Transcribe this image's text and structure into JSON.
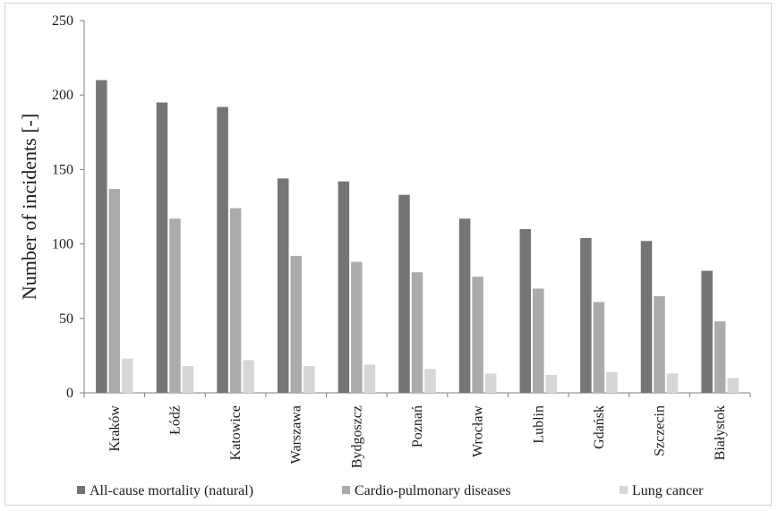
{
  "chart_data": {
    "type": "bar",
    "title": "",
    "xlabel": "",
    "ylabel": "Number of incidents [-]",
    "ylim": [
      0,
      250
    ],
    "yticks": [
      0,
      50,
      100,
      150,
      200,
      250
    ],
    "grid": false,
    "legend_position": "bottom",
    "categories": [
      "Kraków",
      "Łódź",
      "Katowice",
      "Warszawa",
      "Bydgoszcz",
      "Poznań",
      "Wrocław",
      "Lublin",
      "Gdańsk",
      "Szczecin",
      "Białystok"
    ],
    "series": [
      {
        "name": "All-cause mortality (natural)",
        "color": "#757575",
        "values": [
          210,
          195,
          192,
          144,
          142,
          133,
          117,
          110,
          104,
          102,
          82
        ]
      },
      {
        "name": "Cardio-pulmonary diseases",
        "color": "#ababab",
        "values": [
          137,
          117,
          124,
          92,
          88,
          81,
          78,
          70,
          61,
          65,
          48
        ]
      },
      {
        "name": "Lung cancer",
        "color": "#d6d6d6",
        "values": [
          23,
          18,
          22,
          18,
          19,
          16,
          13,
          12,
          14,
          13,
          10
        ]
      }
    ]
  }
}
